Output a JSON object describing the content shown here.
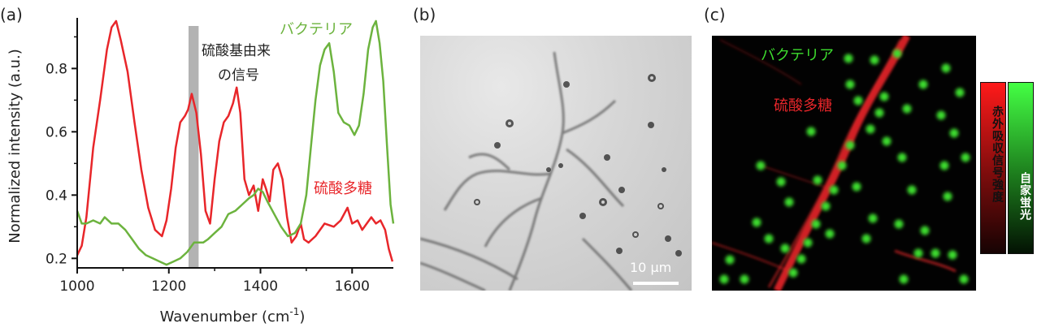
{
  "panels": {
    "a": "(a)",
    "b": "(b)",
    "c": "(c)"
  },
  "chart_data": {
    "type": "line",
    "xlabel": "Wavenumber (cm",
    "xlabel_sup": "-1",
    "xlabel_end": ")",
    "ylabel": "Normalized intensity (a.u.)",
    "xlim": [
      1000,
      1690
    ],
    "ylim": [
      0.17,
      0.96
    ],
    "xticks": [
      1000,
      1200,
      1400,
      1600
    ],
    "yticks": [
      0.2,
      0.4,
      0.6,
      0.8
    ],
    "ytick_labels": [
      "0.2",
      "0.4",
      "0.6",
      "0.8"
    ],
    "band": {
      "x0": 1243,
      "x1": 1265,
      "color": "#b3b3b3",
      "label_line1": "硫酸基由来",
      "label_line2": "の信号"
    },
    "series": [
      {
        "name": "硫酸多糖",
        "color": "#e8262a",
        "x": [
          1000,
          1010,
          1020,
          1035,
          1050,
          1065,
          1075,
          1085,
          1095,
          1110,
          1125,
          1140,
          1155,
          1170,
          1185,
          1195,
          1205,
          1215,
          1225,
          1235,
          1242,
          1250,
          1260,
          1270,
          1280,
          1290,
          1300,
          1310,
          1320,
          1330,
          1340,
          1348,
          1356,
          1365,
          1375,
          1385,
          1395,
          1405,
          1412,
          1420,
          1428,
          1438,
          1448,
          1458,
          1468,
          1478,
          1488,
          1495,
          1505,
          1520,
          1540,
          1560,
          1575,
          1590,
          1600,
          1612,
          1622,
          1632,
          1642,
          1652,
          1662,
          1672,
          1680,
          1688
        ],
        "y": [
          0.21,
          0.24,
          0.33,
          0.55,
          0.7,
          0.86,
          0.93,
          0.95,
          0.89,
          0.79,
          0.63,
          0.48,
          0.36,
          0.29,
          0.27,
          0.32,
          0.42,
          0.55,
          0.63,
          0.65,
          0.67,
          0.72,
          0.66,
          0.53,
          0.35,
          0.31,
          0.45,
          0.57,
          0.63,
          0.65,
          0.69,
          0.74,
          0.66,
          0.45,
          0.4,
          0.43,
          0.35,
          0.45,
          0.42,
          0.38,
          0.48,
          0.5,
          0.45,
          0.33,
          0.25,
          0.27,
          0.31,
          0.26,
          0.25,
          0.27,
          0.31,
          0.3,
          0.32,
          0.36,
          0.31,
          0.32,
          0.29,
          0.31,
          0.33,
          0.31,
          0.32,
          0.29,
          0.23,
          0.19
        ]
      },
      {
        "name": "バクテリア",
        "color": "#6cb33e",
        "x": [
          1000,
          1010,
          1020,
          1035,
          1050,
          1060,
          1075,
          1090,
          1105,
          1120,
          1135,
          1150,
          1165,
          1180,
          1195,
          1210,
          1225,
          1240,
          1255,
          1265,
          1275,
          1285,
          1300,
          1315,
          1330,
          1345,
          1360,
          1375,
          1385,
          1395,
          1405,
          1415,
          1430,
          1445,
          1460,
          1475,
          1488,
          1500,
          1510,
          1520,
          1530,
          1540,
          1550,
          1560,
          1570,
          1582,
          1594,
          1605,
          1615,
          1625,
          1635,
          1645,
          1652,
          1660,
          1668,
          1676,
          1684,
          1690
        ],
        "y": [
          0.35,
          0.31,
          0.31,
          0.32,
          0.31,
          0.33,
          0.31,
          0.31,
          0.29,
          0.26,
          0.23,
          0.21,
          0.2,
          0.19,
          0.18,
          0.19,
          0.2,
          0.22,
          0.25,
          0.25,
          0.25,
          0.26,
          0.28,
          0.3,
          0.34,
          0.35,
          0.37,
          0.39,
          0.4,
          0.42,
          0.41,
          0.38,
          0.34,
          0.3,
          0.27,
          0.28,
          0.31,
          0.4,
          0.55,
          0.7,
          0.81,
          0.86,
          0.88,
          0.79,
          0.66,
          0.63,
          0.62,
          0.59,
          0.62,
          0.72,
          0.86,
          0.93,
          0.95,
          0.88,
          0.76,
          0.56,
          0.37,
          0.31
        ]
      }
    ]
  },
  "panel_b": {
    "scalebar_label": "10 μm"
  },
  "panel_c": {
    "label_bacteria": "バクテリア",
    "label_polysaccharide": "硫酸多糖",
    "colorbar_red_label": "赤外吸収信号強度",
    "colorbar_green_label": "自家蛍光",
    "red_color": "#e8262a",
    "green_color": "#3ddc2e"
  }
}
